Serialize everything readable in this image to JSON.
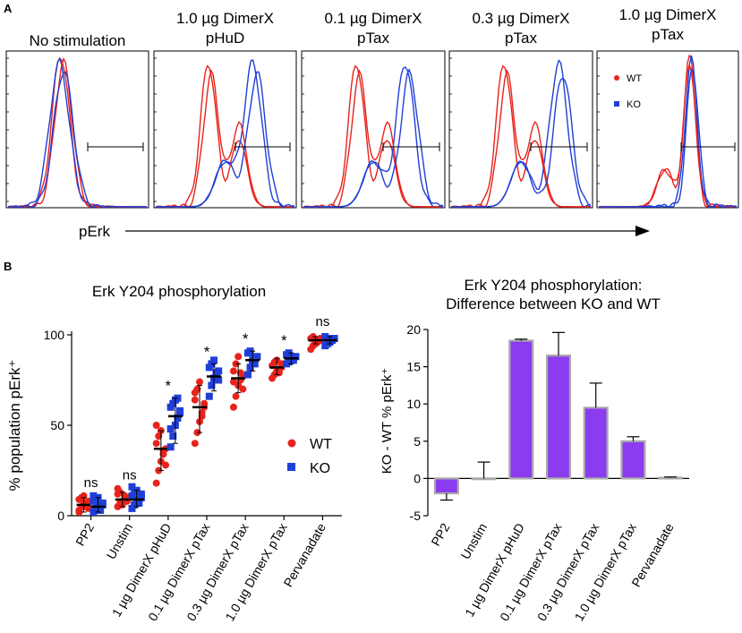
{
  "panel_labels": {
    "a": "A",
    "b": "B"
  },
  "colors": {
    "wt": "#e8231c",
    "ko": "#1f3fd8",
    "bar": "#8b3cf0",
    "bar_edge": "#a9a9a9"
  },
  "chart_data": [
    {
      "type": "histogram-overlay",
      "panel": "A",
      "xlabel": "pErk",
      "panels": [
        {
          "title_lines": [
            "No stimulation"
          ]
        },
        {
          "title_lines": [
            "1.0 µg DimerX",
            "pHuD"
          ]
        },
        {
          "title_lines": [
            "0.1 µg DimerX",
            "pTax"
          ]
        },
        {
          "title_lines": [
            "0.3 µg DimerX",
            "pTax"
          ]
        },
        {
          "title_lines": [
            "1.0 µg DimerX",
            "pTax"
          ]
        }
      ],
      "legend": [
        {
          "label": "WT",
          "color": "#e8231c",
          "marker": "circle"
        },
        {
          "label": "KO",
          "color": "#1f3fd8",
          "marker": "square"
        }
      ],
      "wt_shift": [
        0.0,
        0.0,
        0.0,
        0.0,
        0.0
      ],
      "ko_shift": [
        0.02,
        0.15,
        0.18,
        0.22,
        0.03
      ]
    },
    {
      "type": "scatter",
      "panel": "B-left",
      "title": "Erk Y204 phosphorylation",
      "ylabel": "% population pErk⁺",
      "ylim": [
        0,
        100
      ],
      "yticks": [
        0,
        50,
        100
      ],
      "categories": [
        "PP2",
        "Unstim",
        "1 µg DimerX pHuD",
        "0.1 µg DimerX pTax",
        "0.3 µg DimerX pTax",
        "1.0 µg DimerX pTax",
        "Pervanadate"
      ],
      "significance": [
        "ns",
        "ns",
        "*",
        "*",
        "*",
        "*",
        "ns"
      ],
      "series": [
        {
          "name": "WT",
          "medians": [
            6,
            9,
            37,
            60,
            76,
            82,
            97
          ],
          "error_low": [
            2,
            5,
            25,
            46,
            68,
            78,
            95
          ],
          "error_high": [
            10,
            13,
            47,
            72,
            84,
            87,
            99
          ],
          "values": [
            [
              3,
              5,
              6,
              7,
              8,
              9,
              10,
              11,
              5,
              4,
              2,
              9
            ],
            [
              5,
              7,
              8,
              9,
              10,
              12,
              13,
              6,
              11,
              8,
              15
            ],
            [
              18,
              25,
              30,
              34,
              37,
              40,
              44,
              47,
              36,
              28,
              50
            ],
            [
              40,
              46,
              52,
              57,
              60,
              64,
              70,
              74,
              55,
              62,
              68
            ],
            [
              60,
              66,
              72,
              75,
              77,
              80,
              84,
              88,
              79,
              70,
              74
            ],
            [
              76,
              78,
              80,
              81,
              82,
              83,
              85,
              86,
              79,
              84
            ],
            [
              92,
              94,
              95,
              96,
              97,
              98,
              99,
              96,
              97,
              98
            ]
          ]
        },
        {
          "name": "KO",
          "medians": [
            5,
            9,
            55,
            77,
            86,
            87,
            97
          ],
          "error_low": [
            2,
            5,
            40,
            69,
            80,
            84,
            95
          ],
          "error_high": [
            10,
            14,
            65,
            84,
            91,
            90,
            99
          ],
          "values": [
            [
              2,
              4,
              5,
              6,
              7,
              8,
              9,
              10,
              3,
              6,
              11
            ],
            [
              4,
              6,
              8,
              9,
              10,
              11,
              13,
              14,
              7,
              12,
              16
            ],
            [
              38,
              44,
              50,
              54,
              57,
              60,
              62,
              64,
              65,
              58,
              48
            ],
            [
              66,
              72,
              76,
              78,
              80,
              82,
              84,
              86,
              79,
              75
            ],
            [
              78,
              82,
              85,
              87,
              88,
              90,
              91,
              86,
              84
            ],
            [
              84,
              85,
              86,
              87,
              88,
              89,
              90,
              87,
              86
            ],
            [
              94,
              95,
              96,
              97,
              98,
              99,
              97,
              96,
              98
            ]
          ]
        }
      ],
      "legend": [
        "WT",
        "KO"
      ]
    },
    {
      "type": "bar",
      "panel": "B-right",
      "title_lines": [
        "Erk Y204 phosphorylation:",
        "Difference between KO and WT"
      ],
      "ylabel": "KO - WT % pErk⁺",
      "ylim": [
        -5,
        20
      ],
      "yticks": [
        -5,
        0,
        5,
        10,
        15,
        20
      ],
      "categories": [
        "PP2",
        "Unstim",
        "1 µg DimerX pHuD",
        "0.1 µg DimerX pTax",
        "0.3 µg DimerX pTax",
        "1.0 µg DimerX pTax",
        "Pervanadate"
      ],
      "values": [
        -2,
        0,
        18.5,
        16.5,
        9.5,
        5.0,
        0.1
      ],
      "errors": [
        0.9,
        2.2,
        0.2,
        3.1,
        3.3,
        0.6,
        0.1
      ]
    }
  ]
}
